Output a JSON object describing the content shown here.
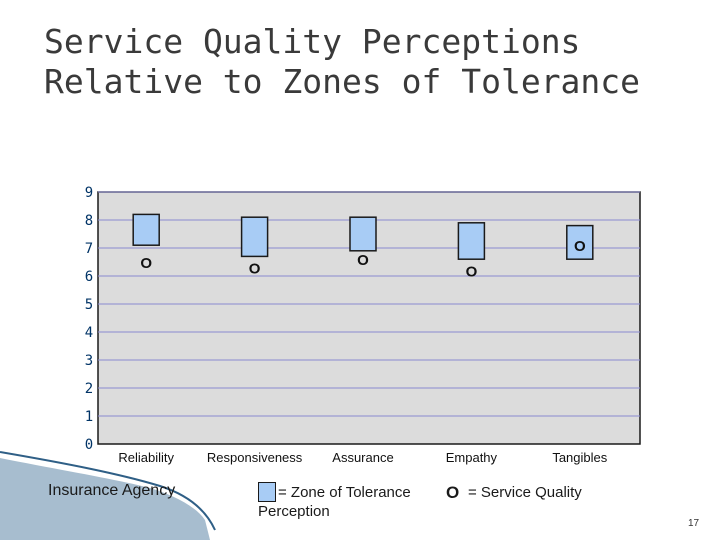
{
  "slide": {
    "title": "Service Quality Perceptions\nRelative to Zones of Tolerance",
    "page_number": "17",
    "agency_label": "Insurance Agency"
  },
  "legend": {
    "zone_label_line1": "= Zone of Tolerance",
    "zone_label_line2": "Perception",
    "perception_marker": "O",
    "perception_label": "= Service Quality"
  },
  "colors": {
    "zone_fill": "#a8ccf5",
    "plot_bg": "#dcdcdc",
    "gridline": "#8a8ad0",
    "axis_label": "#003366"
  },
  "chart_data": {
    "type": "range-bar",
    "title": "",
    "xlabel": "",
    "ylabel": "",
    "categories": [
      "Reliability",
      "Responsiveness",
      "Assurance",
      "Empathy",
      "Tangibles"
    ],
    "yticks": [
      "0",
      "1",
      "2",
      "3",
      "4",
      "5",
      "6",
      "7",
      "8",
      "9"
    ],
    "ylim": [
      0,
      9
    ],
    "grid": true,
    "zones": [
      {
        "category": "Reliability",
        "low": 7.1,
        "high": 8.2
      },
      {
        "category": "Responsiveness",
        "low": 6.7,
        "high": 8.1
      },
      {
        "category": "Assurance",
        "low": 6.9,
        "high": 8.1
      },
      {
        "category": "Empathy",
        "low": 6.6,
        "high": 7.9
      },
      {
        "category": "Tangibles",
        "low": 6.6,
        "high": 7.8
      }
    ],
    "perception": [
      {
        "category": "Reliability",
        "value": 6.5
      },
      {
        "category": "Responsiveness",
        "value": 6.3
      },
      {
        "category": "Assurance",
        "value": 6.6
      },
      {
        "category": "Empathy",
        "value": 6.2
      },
      {
        "category": "Tangibles",
        "value": 7.1
      }
    ],
    "perception_marker": "O"
  }
}
